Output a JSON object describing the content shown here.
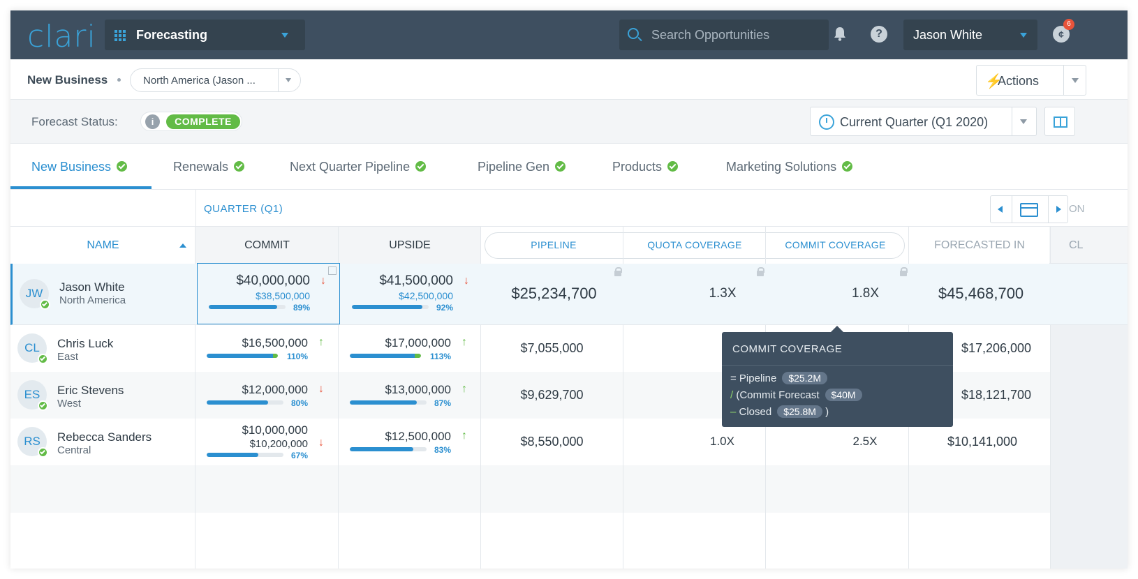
{
  "topbar": {
    "logo": "clari",
    "app": "Forecasting",
    "search_placeholder": "Search Opportunities",
    "user": "Jason White",
    "notification_count": "6",
    "chat_glyph": "¢"
  },
  "subheader": {
    "segment": "New Business",
    "region": "North America (Jason ...",
    "actions": "Actions"
  },
  "status": {
    "label": "Forecast Status:",
    "value": "COMPLETE",
    "quarter": "Current Quarter (Q1 2020)"
  },
  "tabs": [
    {
      "label": "New Business"
    },
    {
      "label": "Renewals"
    },
    {
      "label": "Next Quarter Pipeline"
    },
    {
      "label": "Pipeline Gen"
    },
    {
      "label": "Products"
    },
    {
      "label": "Marketing Solutions"
    }
  ],
  "table": {
    "quarter_label": "QUARTER (Q1)",
    "overflow_label": "ON",
    "columns": {
      "name": "NAME",
      "commit": "COMMIT",
      "upside": "UPSIDE",
      "pipeline": "PIPELINE",
      "quota_coverage": "QUOTA COVERAGE",
      "commit_coverage": "COMMIT COVERAGE",
      "forecasted_in": "FORECASTED IN",
      "cl": "CL"
    },
    "rows": [
      {
        "initials": "JW",
        "name": "Jason White",
        "region": "North America",
        "commit": "$40,000,000",
        "commit_sub": "$38,500,000",
        "commit_pct": "89%",
        "commit_fill": 0.89,
        "commit_trend": "down",
        "upside": "$41,500,000",
        "upside_sub": "$42,500,000",
        "upside_pct": "92%",
        "upside_fill": 0.92,
        "upside_trend": "down",
        "pipeline": "$25,234,700",
        "quota_coverage": "1.3X",
        "commit_coverage": "1.8X",
        "forecasted_in": "$45,468,700"
      },
      {
        "initials": "CL",
        "name": "Chris Luck",
        "region": "East",
        "commit": "$16,500,000",
        "commit_pct": "110%",
        "commit_fill": 1.0,
        "commit_trend": "up",
        "upside": "$17,000,000",
        "upside_pct": "113%",
        "upside_fill": 1.0,
        "upside_trend": "up",
        "pipeline": "$7,055,000",
        "quota_coverage": "1.",
        "commit_coverage": "",
        "forecasted_in": "$17,206,000"
      },
      {
        "initials": "ES",
        "name": "Eric Stevens",
        "region": "West",
        "commit": "$12,000,000",
        "commit_pct": "80%",
        "commit_fill": 0.8,
        "commit_trend": "down",
        "upside": "$13,000,000",
        "upside_pct": "87%",
        "upside_fill": 0.87,
        "upside_trend": "up",
        "pipeline": "$9,629,700",
        "quota_coverage": "1.",
        "commit_coverage": "",
        "forecasted_in": "$18,121,700"
      },
      {
        "initials": "RS",
        "name": "Rebecca Sanders",
        "region": "Central",
        "commit": "$10,000,000",
        "commit_sub": "$10,200,000",
        "commit_pct": "67%",
        "commit_fill": 0.67,
        "commit_trend": "down",
        "upside": "$12,500,000",
        "upside_pct": "83%",
        "upside_fill": 0.83,
        "upside_trend": "up",
        "pipeline": "$8,550,000",
        "quota_coverage": "1.0X",
        "commit_coverage": "2.5X",
        "forecasted_in": "$10,141,000"
      }
    ]
  },
  "tooltip": {
    "title": "COMMIT COVERAGE",
    "line1_prefix": "= Pipeline",
    "line1_chip": "$25.2M",
    "line2_op": "/",
    "line2_prefix": "(Commit Forecast",
    "line2_chip": "$40M",
    "line3_op": "–",
    "line3_prefix": "Closed",
    "line3_chip": "$25.8M",
    "line3_suffix": ")"
  },
  "colors": {
    "topbar": "#3e4f60",
    "accent": "#2b8fd0",
    "positive": "#62bb46",
    "negative": "#e8533a"
  }
}
